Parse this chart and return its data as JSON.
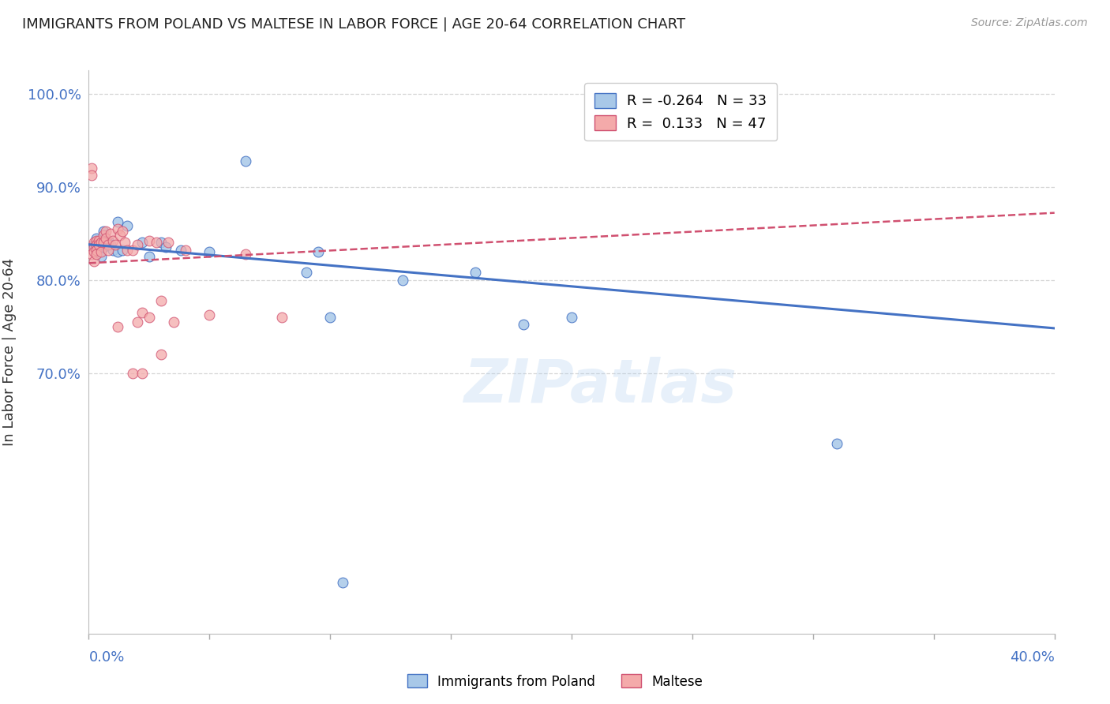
{
  "title": "IMMIGRANTS FROM POLAND VS MALTESE IN LABOR FORCE | AGE 20-64 CORRELATION CHART",
  "source": "Source: ZipAtlas.com",
  "ylabel": "In Labor Force | Age 20-64",
  "legend_blue_r": "R = -0.264",
  "legend_blue_n": "N = 33",
  "legend_pink_r": "R =  0.133",
  "legend_pink_n": "N = 47",
  "legend_label_blue": "Immigrants from Poland",
  "legend_label_pink": "Maltese",
  "blue_color": "#A8C8E8",
  "pink_color": "#F4AAAA",
  "blue_line_color": "#4472C4",
  "pink_line_color": "#D05070",
  "title_color": "#222222",
  "axis_label_color": "#4472C4",
  "grid_color": "#CCCCCC",
  "watermark": "ZIPatlas",
  "blue_x": [
    0.002,
    0.003,
    0.003,
    0.004,
    0.005,
    0.005,
    0.005,
    0.006,
    0.006,
    0.007,
    0.008,
    0.009,
    0.01,
    0.012,
    0.012,
    0.014,
    0.016,
    0.022,
    0.025,
    0.03,
    0.032,
    0.038,
    0.05,
    0.065,
    0.09,
    0.1,
    0.16,
    0.2,
    0.31,
    0.095,
    0.13,
    0.18,
    0.105
  ],
  "blue_y": [
    0.838,
    0.845,
    0.835,
    0.838,
    0.838,
    0.832,
    0.825,
    0.852,
    0.835,
    0.84,
    0.842,
    0.838,
    0.832,
    0.862,
    0.83,
    0.832,
    0.858,
    0.84,
    0.825,
    0.84,
    0.835,
    0.832,
    0.83,
    0.928,
    0.808,
    0.76,
    0.808,
    0.76,
    0.624,
    0.83,
    0.8,
    0.752,
    0.475
  ],
  "pink_x": [
    0.001,
    0.001,
    0.001,
    0.002,
    0.002,
    0.002,
    0.002,
    0.003,
    0.003,
    0.003,
    0.003,
    0.004,
    0.004,
    0.005,
    0.005,
    0.006,
    0.006,
    0.007,
    0.007,
    0.008,
    0.008,
    0.009,
    0.01,
    0.011,
    0.012,
    0.013,
    0.014,
    0.015,
    0.016,
    0.018,
    0.02,
    0.022,
    0.025,
    0.028,
    0.03,
    0.033,
    0.04,
    0.05,
    0.065,
    0.08,
    0.02,
    0.025,
    0.018,
    0.022,
    0.03,
    0.035,
    0.012
  ],
  "pink_y": [
    0.92,
    0.912,
    0.828,
    0.84,
    0.835,
    0.83,
    0.82,
    0.842,
    0.838,
    0.832,
    0.828,
    0.842,
    0.838,
    0.84,
    0.83,
    0.848,
    0.84,
    0.852,
    0.845,
    0.838,
    0.832,
    0.85,
    0.842,
    0.838,
    0.855,
    0.848,
    0.852,
    0.84,
    0.832,
    0.832,
    0.838,
    0.765,
    0.842,
    0.84,
    0.778,
    0.84,
    0.832,
    0.762,
    0.828,
    0.76,
    0.755,
    0.76,
    0.7,
    0.7,
    0.72,
    0.755,
    0.75
  ],
  "xlim": [
    0.0,
    0.4
  ],
  "ylim": [
    0.42,
    1.025
  ],
  "yticks": [
    1.0,
    0.9,
    0.8,
    0.7
  ],
  "ytick_labels": [
    "100.0%",
    "90.0%",
    "80.0%",
    "70.0%"
  ],
  "xtick_positions": [
    0.0,
    0.05,
    0.1,
    0.15,
    0.2,
    0.25,
    0.3,
    0.35,
    0.4
  ],
  "blue_trend_x0": 0.0,
  "blue_trend_x1": 0.4,
  "blue_trend_y0": 0.838,
  "blue_trend_y1": 0.748,
  "pink_trend_x0": 0.0,
  "pink_trend_x1": 0.4,
  "pink_trend_y0": 0.818,
  "pink_trend_y1": 0.872
}
